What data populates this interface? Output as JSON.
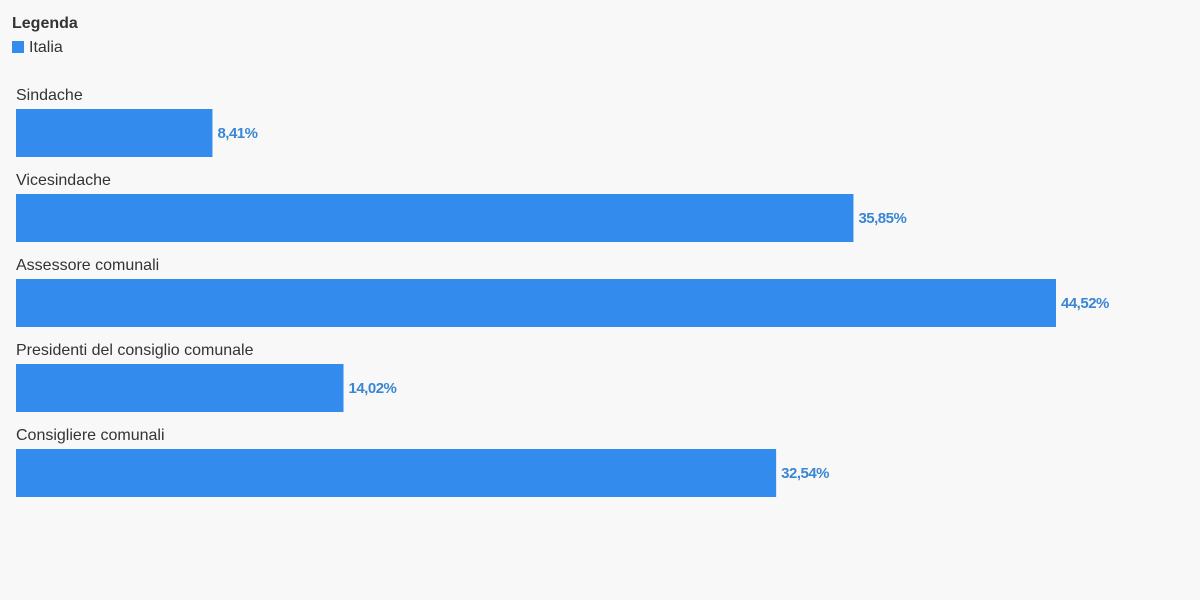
{
  "chart_data": {
    "type": "bar",
    "orientation": "horizontal",
    "legend_title": "Legenda",
    "categories": [
      "Sindache",
      "Vicesindache",
      "Assessore comunali",
      "Presidenti del consiglio comunale",
      "Consigliere comunali"
    ],
    "series": [
      {
        "name": "Italia",
        "color": "#338ced",
        "values": [
          8.41,
          35.85,
          44.52,
          14.02,
          32.54
        ],
        "value_labels": [
          "8,41%",
          "35,85%",
          "44,52%",
          "14,02%",
          "32,54%"
        ]
      }
    ],
    "legend": "top-left"
  }
}
